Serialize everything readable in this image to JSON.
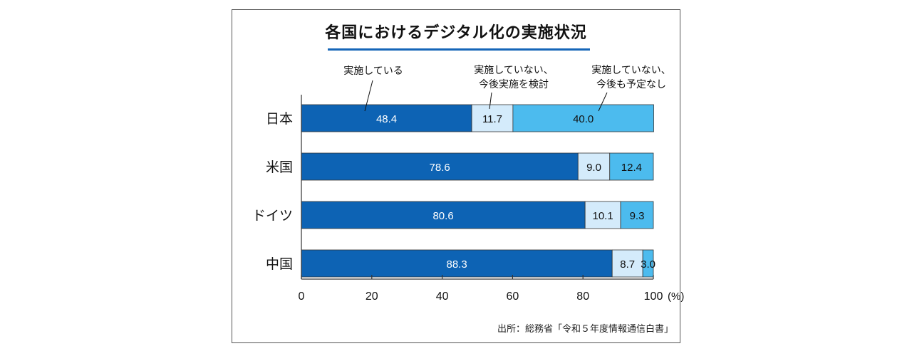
{
  "chart_data": {
    "type": "bar",
    "orientation": "horizontal",
    "stacked": true,
    "title": "各国におけるデジタル化の実施状況",
    "categories": [
      "日本",
      "米国",
      "ドイツ",
      "中国"
    ],
    "series": [
      {
        "name": "実施している",
        "values": [
          48.4,
          78.6,
          80.6,
          88.3
        ],
        "color": "#0d63b4",
        "label_color": "#ffffff"
      },
      {
        "name": "実施していない、今後実施を検討",
        "values": [
          11.7,
          9.0,
          10.1,
          8.7
        ],
        "color": "#d4ebfb",
        "label_color": "#111111"
      },
      {
        "name": "実施していない、今後も予定なし",
        "values": [
          40.0,
          12.4,
          9.3,
          3.0
        ],
        "color": "#4cbbee",
        "label_color": "#111111"
      }
    ],
    "series_label_lines": [
      [
        "実施している"
      ],
      [
        "実施していない、",
        "今後実施を検討"
      ],
      [
        "実施していない、",
        "今後も予定なし"
      ]
    ],
    "value_labels": [
      [
        "48.4",
        "78.6",
        "80.6",
        "88.3"
      ],
      [
        "11.7",
        "9.0",
        "10.1",
        "8.7"
      ],
      [
        "40.0",
        "12.4",
        "9.3",
        "3.0"
      ]
    ],
    "xlim": [
      0,
      100
    ],
    "xticks": [
      "0",
      "20",
      "40",
      "60",
      "80",
      "100"
    ],
    "x_unit": "(%)",
    "grid": false,
    "legend": "callouts-top"
  },
  "source": "出所：総務省「令和５年度情報通信白書」"
}
